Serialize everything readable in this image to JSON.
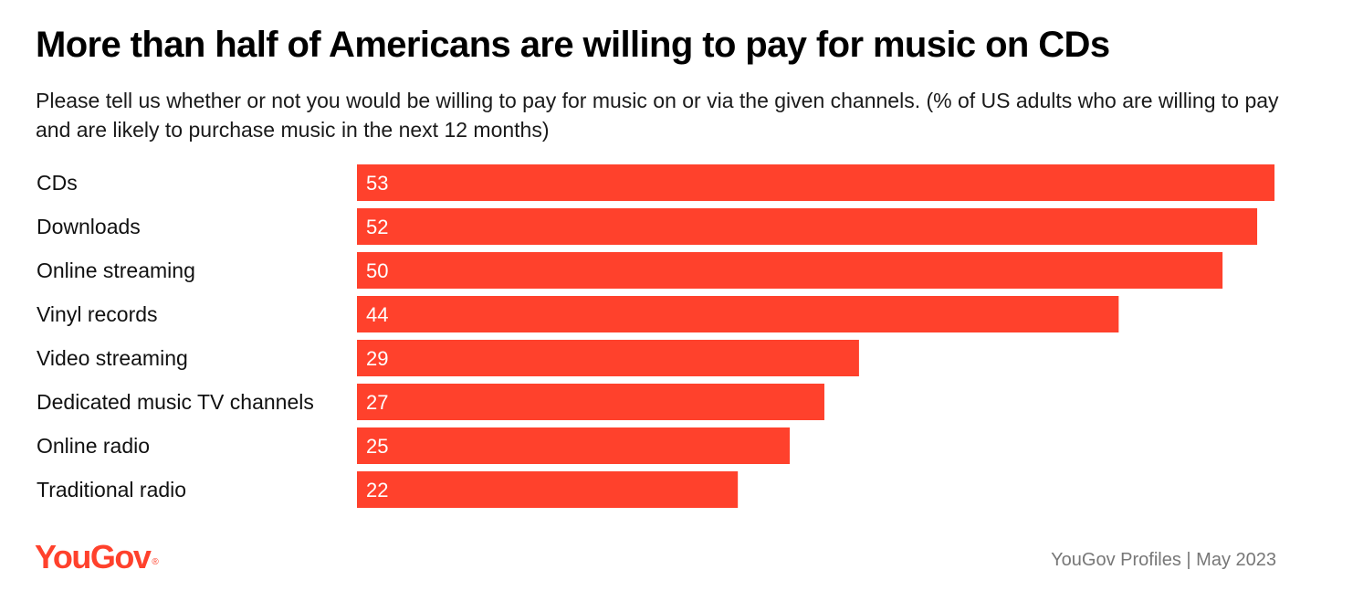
{
  "title": "More than half of Americans are willing to pay for music on CDs",
  "subtitle": "Please tell us whether or not you would be willing to pay for music on or via the given channels. (% of US adults who are willing to pay and are likely to purchase music in the next 12 months)",
  "colors": {
    "bar": "#ff412c",
    "logo": "#ff412c",
    "source_text": "#777777"
  },
  "footer": {
    "logo_text": "YouGov",
    "logo_mark": "®",
    "source": "YouGov Profiles | May 2023"
  },
  "chart_data": {
    "type": "bar",
    "orientation": "horizontal",
    "categories": [
      "CDs",
      "Downloads",
      "Online streaming",
      "Vinyl records",
      "Video streaming",
      "Dedicated music TV channels",
      "Online radio",
      "Traditional radio"
    ],
    "values": [
      53,
      52,
      50,
      44,
      29,
      27,
      25,
      22
    ],
    "xlim": [
      0,
      53
    ],
    "grid": false,
    "legend": "none"
  }
}
